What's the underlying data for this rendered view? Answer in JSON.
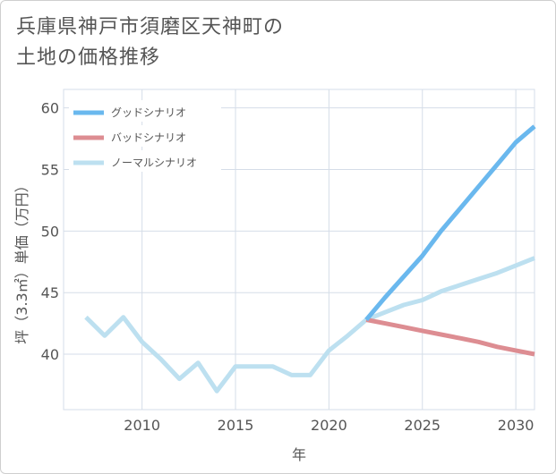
{
  "title": {
    "line1": "兵庫県神戸市須磨区天神町の",
    "line2": "土地の価格推移"
  },
  "chart_data": {
    "type": "line",
    "title": "兵庫県神戸市須磨区天神町の土地の価格推移",
    "xlabel": "年",
    "ylabel": "坪（3.3㎡）単価（万円）",
    "xlim": [
      2005.8,
      2031
    ],
    "ylim": [
      35.5,
      61.5
    ],
    "xticks": [
      2010,
      2015,
      2020,
      2025,
      2030
    ],
    "yticks": [
      40,
      45,
      50,
      55,
      60
    ],
    "grid": true,
    "legend_position": "top-left",
    "series": [
      {
        "name": "グッドシナリオ",
        "color": "#6ab8ee",
        "width": 5,
        "x": [
          2022,
          2023,
          2024,
          2025,
          2026,
          2027,
          2028,
          2029,
          2030,
          2031
        ],
        "y": [
          42.8,
          44.6,
          46.3,
          48.0,
          50.0,
          51.8,
          53.6,
          55.4,
          57.2,
          58.5
        ]
      },
      {
        "name": "バッドシナリオ",
        "color": "#dd8d92",
        "width": 5,
        "x": [
          2022,
          2023,
          2024,
          2025,
          2026,
          2027,
          2028,
          2029,
          2030,
          2031
        ],
        "y": [
          42.8,
          42.5,
          42.2,
          41.9,
          41.6,
          41.3,
          41.0,
          40.6,
          40.3,
          40.0
        ]
      },
      {
        "name": "ノーマルシナリオ",
        "color": "#bde0f0",
        "width": 5,
        "x": [
          2007,
          2008,
          2009,
          2010,
          2011,
          2012,
          2013,
          2014,
          2015,
          2016,
          2017,
          2018,
          2019,
          2020,
          2021,
          2022,
          2023,
          2024,
          2025,
          2026,
          2027,
          2028,
          2029,
          2030,
          2031
        ],
        "y": [
          43.0,
          41.5,
          43.0,
          41.0,
          39.6,
          38.0,
          39.3,
          37.0,
          39.0,
          39.0,
          39.0,
          38.3,
          38.3,
          40.3,
          41.5,
          42.8,
          43.4,
          44.0,
          44.4,
          45.1,
          45.6,
          46.1,
          46.6,
          47.2,
          47.8
        ]
      }
    ]
  },
  "colors": {
    "grid": "#d5dde8",
    "text": "#555555"
  }
}
